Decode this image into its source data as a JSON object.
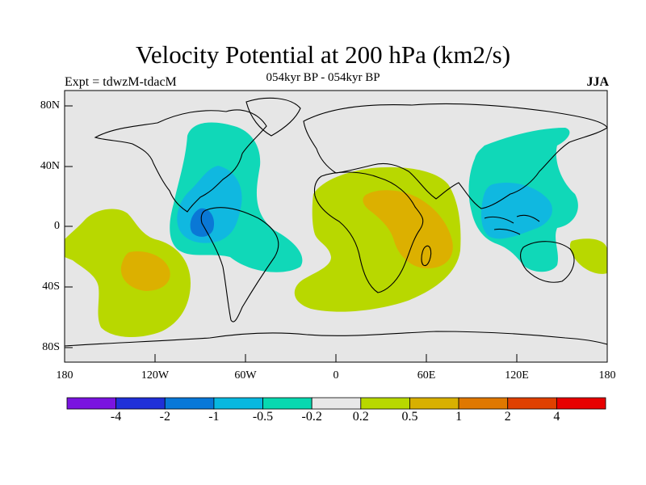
{
  "title": "Velocity Potential at 200 hPa (km2/s)",
  "subtitle": "054kyr BP - 054kyr BP",
  "experiment_label": "Expt = tdwzM-tdacM",
  "season_label": "JJA",
  "lat_ticks": [
    "80N",
    "40N",
    "0",
    "40S",
    "80S"
  ],
  "lon_ticks": [
    "180",
    "120W",
    "60W",
    "0",
    "60E",
    "120E",
    "180"
  ],
  "colorbar": {
    "colors": [
      "#7a14e0",
      "#2030d8",
      "#0878d8",
      "#08b8e0",
      "#08d8b0",
      "#e8e8e8",
      "#b8d800",
      "#d8b000",
      "#e07800",
      "#e04000",
      "#e80000"
    ],
    "labels": [
      "-4",
      "-2",
      "-1",
      "-0.5",
      "-0.2",
      "0.2",
      "0.5",
      "1",
      "2",
      "4"
    ]
  },
  "map": {
    "background_color": "#e6e6e6",
    "regions": [
      {
        "name": "north-atlantic-low",
        "level": "-0.2",
        "color": "#10d8b8"
      },
      {
        "name": "central-america-low-inner",
        "level": "-0.5",
        "color": "#10b8e0"
      },
      {
        "name": "central-america-low-core",
        "level": "-1",
        "color": "#0a78d6"
      },
      {
        "name": "asia-pacific-low",
        "level": "-0.2",
        "color": "#10d8b8"
      },
      {
        "name": "maritime-continent-low-inner",
        "level": "-0.5",
        "color": "#10b8e0"
      },
      {
        "name": "africa-high",
        "level": "0.2",
        "color": "#b8d800"
      },
      {
        "name": "africa-high-core",
        "level": "0.5",
        "color": "#dcb000"
      },
      {
        "name": "south-pacific-high",
        "level": "0.2",
        "color": "#b8d800"
      },
      {
        "name": "south-pacific-high-core",
        "level": "0.5",
        "color": "#dcb000"
      }
    ]
  }
}
